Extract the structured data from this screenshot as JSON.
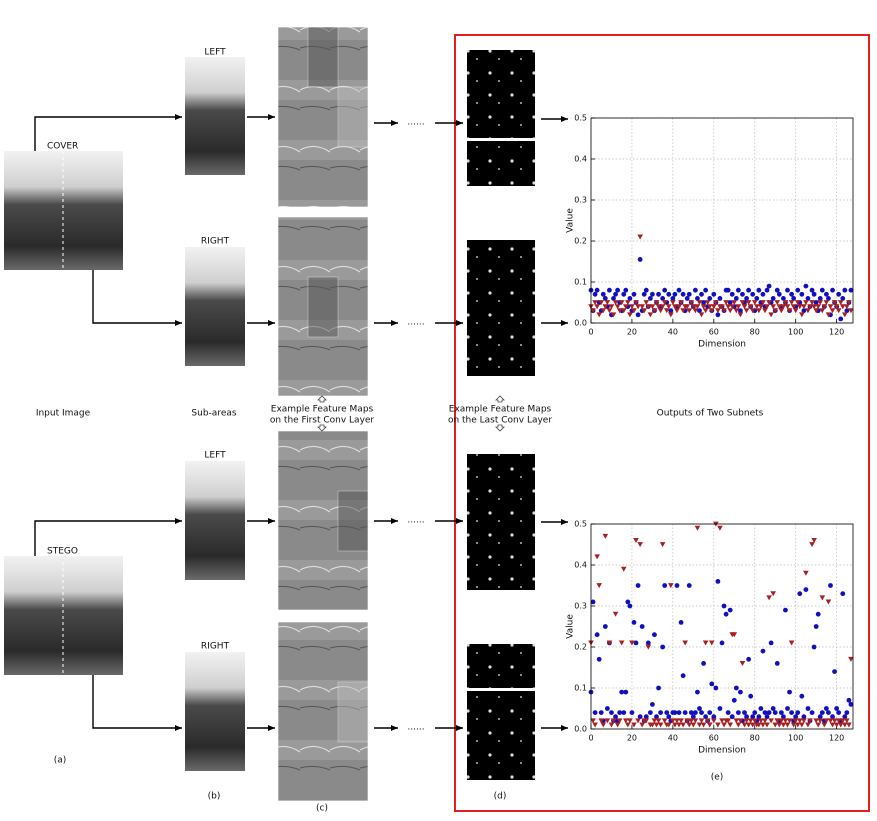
{
  "figure": {
    "cover": "COVER",
    "stego": "STEGO",
    "left": "LEFT",
    "right": "RIGHT",
    "dots": "......",
    "input_label": "Input Image",
    "subareas_label": "Sub-areas",
    "first_conv_label": [
      "Example Feature Maps",
      "on the First Conv Layer"
    ],
    "last_conv_label": [
      "Example Feature Maps",
      "on the Last Conv Layer"
    ],
    "outputs_label": "Outputs of Two Subnets",
    "panels": [
      "(a)",
      "(b)",
      "(c)",
      "(d)",
      "(e)"
    ]
  },
  "chart_data": [
    {
      "type": "scatter",
      "xlabel": "Dimension",
      "ylabel": "Value",
      "xlim": [
        0,
        128
      ],
      "ylim": [
        0,
        0.5
      ],
      "xticks": [
        0,
        20,
        40,
        60,
        80,
        100,
        120
      ],
      "yticks": [
        {
          "value": 0,
          "label": "0.0"
        },
        0.1,
        0.2,
        0.3,
        0.4,
        0.5
      ],
      "grid": true,
      "x": [
        0,
        1,
        2,
        3,
        4,
        5,
        6,
        7,
        8,
        9,
        10,
        11,
        12,
        13,
        14,
        15,
        16,
        17,
        18,
        19,
        20,
        21,
        22,
        23,
        24,
        25,
        26,
        27,
        28,
        29,
        30,
        31,
        32,
        33,
        34,
        35,
        36,
        37,
        38,
        39,
        40,
        41,
        42,
        43,
        44,
        45,
        46,
        47,
        48,
        49,
        50,
        51,
        52,
        53,
        54,
        55,
        56,
        57,
        58,
        59,
        60,
        61,
        62,
        63,
        64,
        65,
        66,
        67,
        68,
        69,
        70,
        71,
        72,
        73,
        74,
        75,
        76,
        77,
        78,
        79,
        80,
        81,
        82,
        83,
        84,
        85,
        86,
        87,
        88,
        89,
        90,
        91,
        92,
        93,
        94,
        95,
        96,
        97,
        98,
        99,
        100,
        101,
        102,
        103,
        104,
        105,
        106,
        107,
        108,
        109,
        110,
        111,
        112,
        113,
        114,
        115,
        116,
        117,
        118,
        119,
        120,
        121,
        122,
        123,
        124,
        125,
        126,
        127
      ],
      "series": [
        {
          "color": "#1010c0",
          "marker": "o",
          "values": [
            0.08,
            0.03,
            0.07,
            0.08,
            0.05,
            0.03,
            0.07,
            0.06,
            0.04,
            0.08,
            0.02,
            0.06,
            0.07,
            0.08,
            0.05,
            0.03,
            0.07,
            0.08,
            0.04,
            0.06,
            0.03,
            0.07,
            0.05,
            0.02,
            0.155,
            0.03,
            0.07,
            0.08,
            0.04,
            0.06,
            0.07,
            0.03,
            0.05,
            0.07,
            0.04,
            0.06,
            0.08,
            0.05,
            0.07,
            0.03,
            0.06,
            0.07,
            0.04,
            0.08,
            0.05,
            0.07,
            0.03,
            0.06,
            0.07,
            0.05,
            0.04,
            0.08,
            0.06,
            0.03,
            0.07,
            0.05,
            0.08,
            0.04,
            0.06,
            0.03,
            0.07,
            0.05,
            0.02,
            0.06,
            0.04,
            0.03,
            0.08,
            0.08,
            0.05,
            0.07,
            0.04,
            0.06,
            0.08,
            0.03,
            0.07,
            0.05,
            0.06,
            0.08,
            0.04,
            0.07,
            0.03,
            0.06,
            0.08,
            0.05,
            0.07,
            0.04,
            0.08,
            0.09,
            0.05,
            0.06,
            0.03,
            0.08,
            0.07,
            0.04,
            0.06,
            0.05,
            0.08,
            0.03,
            0.07,
            0.06,
            0.04,
            0.08,
            0.05,
            0.07,
            0.03,
            0.09,
            0.06,
            0.04,
            0.08,
            0.07,
            0.05,
            0.03,
            0.06,
            0.08,
            0.04,
            0.07,
            0.06,
            0.02,
            0.08,
            0.05,
            0.04,
            0.07,
            0.01,
            0.06,
            0.08,
            0.03,
            0.05,
            0.08
          ]
        },
        {
          "color": "#a82020",
          "marker": "v",
          "values": [
            0.04,
            0.03,
            0.05,
            0.04,
            0.02,
            0.05,
            0.03,
            0.04,
            0.05,
            0.03,
            0.04,
            0.02,
            0.05,
            0.04,
            0.03,
            0.05,
            0.03,
            0.04,
            0.05,
            0.02,
            0.04,
            0.03,
            0.05,
            0.04,
            0.21,
            0.04,
            0.03,
            0.05,
            0.04,
            0.02,
            0.04,
            0.03,
            0.05,
            0.04,
            0.03,
            0.04,
            0.05,
            0.03,
            0.04,
            0.02,
            0.05,
            0.04,
            0.03,
            0.04,
            0.05,
            0.03,
            0.04,
            0.04,
            0.03,
            0.05,
            0.04,
            0.03,
            0.04,
            0.05,
            0.02,
            0.04,
            0.03,
            0.05,
            0.04,
            0.03,
            0.04,
            0.05,
            0.03,
            0.04,
            0.04,
            0.03,
            0.05,
            0.04,
            0.03,
            0.04,
            0.05,
            0.03,
            0.04,
            0.02,
            0.05,
            0.04,
            0.03,
            0.05,
            0.04,
            0.03,
            0.05,
            0.04,
            0.03,
            0.04,
            0.05,
            0.03,
            0.04,
            0.05,
            0.02,
            0.04,
            0.03,
            0.05,
            0.04,
            0.03,
            0.04,
            0.05,
            0.04,
            0.03,
            0.05,
            0.04,
            0.03,
            0.05,
            0.04,
            0.02,
            0.04,
            0.05,
            0.03,
            0.04,
            0.05,
            0.04,
            0.03,
            0.04,
            0.05,
            0.03,
            0.04,
            0.05,
            0.02,
            0.04,
            0.03,
            0.05,
            0.04,
            0.03,
            0.05,
            0.04,
            0.02,
            0.04,
            0.05,
            0.03
          ]
        }
      ]
    },
    {
      "type": "scatter",
      "xlabel": "Dimension",
      "ylabel": "Value",
      "xlim": [
        0,
        128
      ],
      "ylim": [
        0,
        0.5
      ],
      "xticks": [
        0,
        20,
        40,
        60,
        80,
        100,
        120
      ],
      "yticks": [
        {
          "value": 0,
          "label": "0.0"
        },
        0.1,
        0.2,
        0.3,
        0.4,
        0.5
      ],
      "grid": true,
      "x": [
        0,
        1,
        2,
        3,
        4,
        5,
        6,
        7,
        8,
        9,
        10,
        11,
        12,
        13,
        14,
        15,
        16,
        17,
        18,
        19,
        20,
        21,
        22,
        23,
        24,
        25,
        26,
        27,
        28,
        29,
        30,
        31,
        32,
        33,
        34,
        35,
        36,
        37,
        38,
        39,
        40,
        41,
        42,
        43,
        44,
        45,
        46,
        47,
        48,
        49,
        50,
        51,
        52,
        53,
        54,
        55,
        56,
        57,
        58,
        59,
        60,
        61,
        62,
        63,
        64,
        65,
        66,
        67,
        68,
        69,
        70,
        71,
        72,
        73,
        74,
        75,
        76,
        77,
        78,
        79,
        80,
        81,
        82,
        83,
        84,
        85,
        86,
        87,
        88,
        89,
        90,
        91,
        92,
        93,
        94,
        95,
        96,
        97,
        98,
        99,
        100,
        101,
        102,
        103,
        104,
        105,
        106,
        107,
        108,
        109,
        110,
        111,
        112,
        113,
        114,
        115,
        116,
        117,
        118,
        119,
        120,
        121,
        122,
        123,
        124,
        125,
        126,
        127
      ],
      "series": [
        {
          "color": "#1010c0",
          "marker": "o",
          "values": [
            0.09,
            0.31,
            0.04,
            0.23,
            0.17,
            0.04,
            0.02,
            0.25,
            0.05,
            0.21,
            0.04,
            0.02,
            0.03,
            0.02,
            0.04,
            0.09,
            0.04,
            0.09,
            0.31,
            0.3,
            0.04,
            0.26,
            0.21,
            0.35,
            0.03,
            0.25,
            0.02,
            0.03,
            0.21,
            0.04,
            0.06,
            0.23,
            0.03,
            0.1,
            0.04,
            0.2,
            0.35,
            0.04,
            0.03,
            0.02,
            0.04,
            0.04,
            0.35,
            0.04,
            0.26,
            0.13,
            0.04,
            0.02,
            0.35,
            0.04,
            0.03,
            0.04,
            0.09,
            0.05,
            0.04,
            0.16,
            0.03,
            0.02,
            0.04,
            0.11,
            0.03,
            0.1,
            0.36,
            0.05,
            0.21,
            0.3,
            0.28,
            0.04,
            0.29,
            0.03,
            0.07,
            0.1,
            0.04,
            0.09,
            0.02,
            0.04,
            0.03,
            0.17,
            0.08,
            0.03,
            0.04,
            0.02,
            0.03,
            0.05,
            0.19,
            0.04,
            0.03,
            0.04,
            0.21,
            0.05,
            0.04,
            0.16,
            0.02,
            0.04,
            0.03,
            0.29,
            0.05,
            0.09,
            0.04,
            0.02,
            0.03,
            0.04,
            0.33,
            0.08,
            0.03,
            0.34,
            0.05,
            0.02,
            0.04,
            0.2,
            0.25,
            0.28,
            0.03,
            0.04,
            0.02,
            0.05,
            0.04,
            0.35,
            0.03,
            0.14,
            0.05,
            0.04,
            0.02,
            0.33,
            0.03,
            0.04,
            0.07,
            0.06
          ]
        },
        {
          "color": "#a82020",
          "marker": "v",
          "values": [
            0.21,
            0.02,
            0.01,
            0.42,
            0.35,
            0.02,
            0.01,
            0.47,
            0.02,
            0.21,
            0.01,
            0.02,
            0.28,
            0.01,
            0.02,
            0.21,
            0.39,
            0.02,
            0.01,
            0.02,
            0.21,
            0.01,
            0.46,
            0.02,
            0.45,
            0.01,
            0.02,
            0.02,
            0.2,
            0.01,
            0.01,
            0.02,
            0.01,
            0.02,
            0.01,
            0.45,
            0.02,
            0.01,
            0.01,
            0.35,
            0.02,
            0.01,
            0.02,
            0.01,
            0.02,
            0.01,
            0.21,
            0.02,
            0.01,
            0.02,
            0.01,
            0.02,
            0.49,
            0.01,
            0.02,
            0.01,
            0.21,
            0.02,
            0.01,
            0.21,
            0.02,
            0.5,
            0.01,
            0.49,
            0.02,
            0.01,
            0.02,
            0.02,
            0.01,
            0.23,
            0.23,
            0.02,
            0.01,
            0.02,
            0.16,
            0.01,
            0.02,
            0.01,
            0.02,
            0.01,
            0.02,
            0.01,
            0.01,
            0.02,
            0.01,
            0.02,
            0.01,
            0.32,
            0.02,
            0.33,
            0.01,
            0.02,
            0.01,
            0.02,
            0.01,
            0.02,
            0.01,
            0.02,
            0.21,
            0.01,
            0.02,
            0.01,
            0.02,
            0.01,
            0.02,
            0.38,
            0.01,
            0.02,
            0.45,
            0.46,
            0.02,
            0.01,
            0.02,
            0.32,
            0.01,
            0.02,
            0.31,
            0.02,
            0.01,
            0.02,
            0.01,
            0.02,
            0.01,
            0.02,
            0.01,
            0.02,
            0.01,
            0.17
          ]
        }
      ]
    }
  ]
}
